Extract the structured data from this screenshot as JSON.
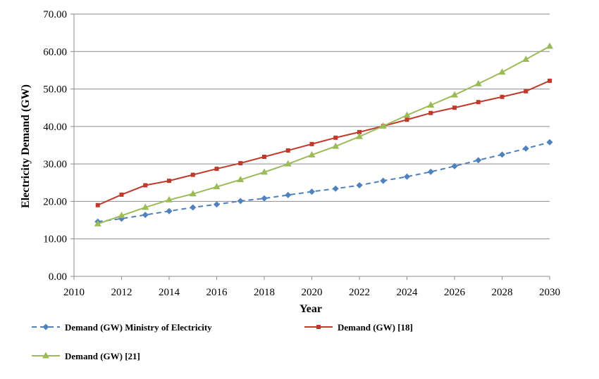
{
  "chart_data": {
    "type": "line",
    "title": "",
    "xlabel": "Year",
    "ylabel": "Electricity Demand (GW)",
    "xlim": [
      2010,
      2030
    ],
    "ylim": [
      0,
      70
    ],
    "x_ticks": [
      "2010",
      "2012",
      "2014",
      "2016",
      "2018",
      "2020",
      "2022",
      "2024",
      "2026",
      "2028",
      "2030"
    ],
    "y_ticks": [
      "0.00",
      "10.00",
      "20.00",
      "30.00",
      "40.00",
      "50.00",
      "60.00",
      "70.00"
    ],
    "grid": "horizontal",
    "legend_position": "bottom",
    "x": [
      2011,
      2012,
      2013,
      2014,
      2015,
      2016,
      2017,
      2018,
      2019,
      2020,
      2021,
      2022,
      2023,
      2024,
      2025,
      2026,
      2027,
      2028,
      2029,
      2030
    ],
    "series": [
      {
        "name": "Demand (GW) Ministry of Electricity",
        "color": "#4f81bd",
        "line_style": "dashed",
        "marker": "diamond",
        "values": [
          14.6,
          15.4,
          16.4,
          17.4,
          18.4,
          19.2,
          20.1,
          20.8,
          21.7,
          22.6,
          23.4,
          24.3,
          25.5,
          26.6,
          27.9,
          29.4,
          31.0,
          32.5,
          34.1,
          35.8
        ]
      },
      {
        "name": "Demand (GW) [18]",
        "color": "#c0392b",
        "line_style": "solid",
        "marker": "square",
        "values": [
          19.0,
          21.8,
          24.3,
          25.5,
          27.1,
          28.7,
          30.2,
          31.9,
          33.6,
          35.3,
          37.0,
          38.5,
          40.1,
          41.8,
          43.6,
          45.0,
          46.5,
          47.9,
          49.4,
          52.2
        ]
      },
      {
        "name": "Demand (GW) [21]",
        "color": "#9bbb59",
        "line_style": "solid",
        "marker": "triangle",
        "values": [
          14.0,
          16.2,
          18.4,
          20.4,
          22.0,
          23.9,
          25.8,
          27.8,
          30.0,
          32.4,
          34.7,
          37.3,
          40.1,
          43.0,
          45.7,
          48.4,
          51.4,
          54.5,
          57.9,
          61.4
        ]
      }
    ]
  }
}
